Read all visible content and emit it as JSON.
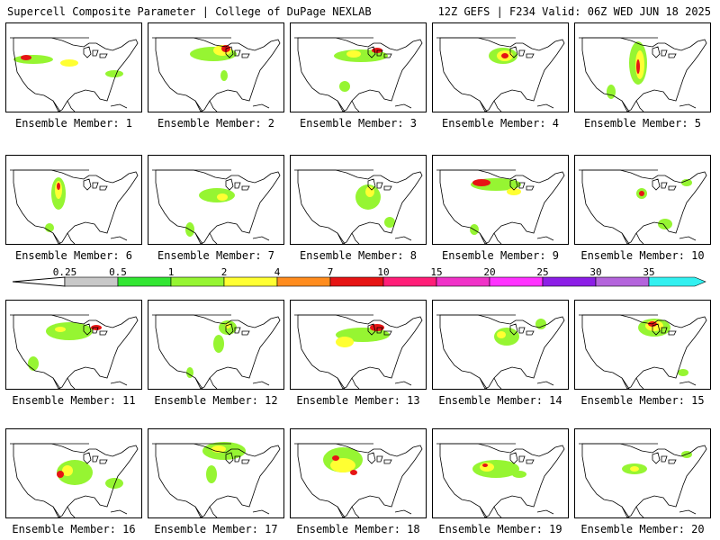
{
  "header": {
    "title": "Supercell Composite Parameter | College of DuPage NEXLAB",
    "run_info": "12Z GEFS | F234 Valid: 06Z WED JUN 18 2025"
  },
  "panels": [
    {
      "label": "Ensemble Member: 1"
    },
    {
      "label": "Ensemble Member: 2"
    },
    {
      "label": "Ensemble Member: 3"
    },
    {
      "label": "Ensemble Member: 4"
    },
    {
      "label": "Ensemble Member: 5"
    },
    {
      "label": "Ensemble Member: 6"
    },
    {
      "label": "Ensemble Member: 7"
    },
    {
      "label": "Ensemble Member: 8"
    },
    {
      "label": "Ensemble Member: 9"
    },
    {
      "label": "Ensemble Member: 10"
    },
    {
      "label": "Ensemble Member: 11"
    },
    {
      "label": "Ensemble Member: 12"
    },
    {
      "label": "Ensemble Member: 13"
    },
    {
      "label": "Ensemble Member: 14"
    },
    {
      "label": "Ensemble Member: 15"
    },
    {
      "label": "Ensemble Member: 16"
    },
    {
      "label": "Ensemble Member: 17"
    },
    {
      "label": "Ensemble Member: 18"
    },
    {
      "label": "Ensemble Member: 19"
    },
    {
      "label": "Ensemble Member: 20"
    }
  ],
  "colorbar": {
    "ticks": [
      "0.25",
      "0.5",
      "1",
      "2",
      "4",
      "7",
      "10",
      "15",
      "20",
      "25",
      "30",
      "35"
    ],
    "colors": [
      "#c8c8c8",
      "#32e632",
      "#96f532",
      "#ffff32",
      "#ff8c1e",
      "#e61414",
      "#ff1e78",
      "#f032c8",
      "#ff32ff",
      "#8c1ee6",
      "#b464dc",
      "#32f0f0"
    ]
  }
}
